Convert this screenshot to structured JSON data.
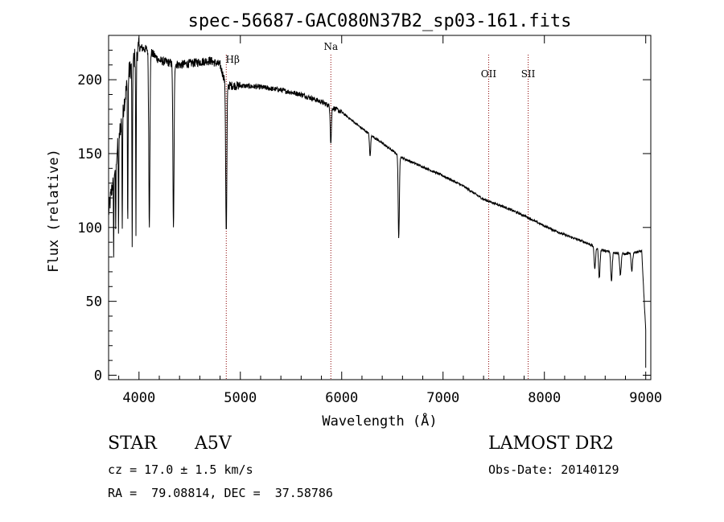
{
  "chart_data": {
    "type": "line",
    "title": "spec-56687-GAC080N37B2_sp03-161.fits",
    "xlabel": "Wavelength (Å)",
    "ylabel": "Flux (relative)",
    "xlim": [
      3700,
      9050
    ],
    "ylim": [
      -3,
      230
    ],
    "xticks": [
      4000,
      5000,
      6000,
      7000,
      8000,
      9000
    ],
    "yticks": [
      0,
      50,
      100,
      150,
      200
    ],
    "grid": false,
    "line_color": "#000000",
    "marker_color": "#8b0000",
    "line_markers": [
      {
        "label": "Hβ",
        "x": 4861
      },
      {
        "label": "Na",
        "x": 5893
      },
      {
        "label": "OII",
        "x": 7450
      },
      {
        "label": "SII",
        "x": 7840
      }
    ],
    "continuum": [
      [
        3700,
        110
      ],
      [
        3800,
        160
      ],
      [
        3900,
        205
      ],
      [
        4000,
        222
      ],
      [
        4100,
        220
      ],
      [
        4200,
        213
      ],
      [
        4400,
        210
      ],
      [
        4600,
        212
      ],
      [
        4700,
        213
      ],
      [
        4800,
        210
      ],
      [
        4860,
        196
      ],
      [
        5000,
        196
      ],
      [
        5200,
        195
      ],
      [
        5400,
        193
      ],
      [
        5600,
        190
      ],
      [
        5800,
        185
      ],
      [
        6000,
        178
      ],
      [
        6200,
        167
      ],
      [
        6400,
        157
      ],
      [
        6500,
        152
      ],
      [
        6600,
        147
      ],
      [
        6700,
        144
      ],
      [
        7000,
        135
      ],
      [
        7200,
        128
      ],
      [
        7400,
        119
      ],
      [
        7600,
        114
      ],
      [
        7800,
        108
      ],
      [
        8000,
        101
      ],
      [
        8200,
        95
      ],
      [
        8400,
        90
      ],
      [
        8600,
        84
      ],
      [
        8800,
        82
      ],
      [
        8960,
        84
      ],
      [
        9000,
        30
      ]
    ],
    "absorption_lines": [
      {
        "x": 3750,
        "depth": 50
      },
      {
        "x": 3770,
        "depth": 45
      },
      {
        "x": 3798,
        "depth": 60
      },
      {
        "x": 3835,
        "depth": 75
      },
      {
        "x": 3889,
        "depth": 100
      },
      {
        "x": 3933,
        "depth": 130
      },
      {
        "x": 3970,
        "depth": 120
      },
      {
        "x": 4102,
        "depth": 118
      },
      {
        "x": 4340,
        "depth": 112
      },
      {
        "x": 4861,
        "depth": 100
      },
      {
        "x": 5893,
        "depth": 25
      },
      {
        "x": 6280,
        "depth": 15
      },
      {
        "x": 6563,
        "depth": 57
      },
      {
        "x": 8498,
        "depth": 15
      },
      {
        "x": 8542,
        "depth": 20
      },
      {
        "x": 8662,
        "depth": 20
      },
      {
        "x": 8750,
        "depth": 15
      },
      {
        "x": 8863,
        "depth": 12
      }
    ]
  },
  "info": {
    "object_class": "STAR",
    "subclass": "A5V",
    "survey": "LAMOST DR2",
    "cz": "cz = 17.0 ± 1.5 km/s",
    "obs_date": "Obs-Date: 20140129",
    "radec": "RA =  79.08814, DEC =  37.58786"
  }
}
